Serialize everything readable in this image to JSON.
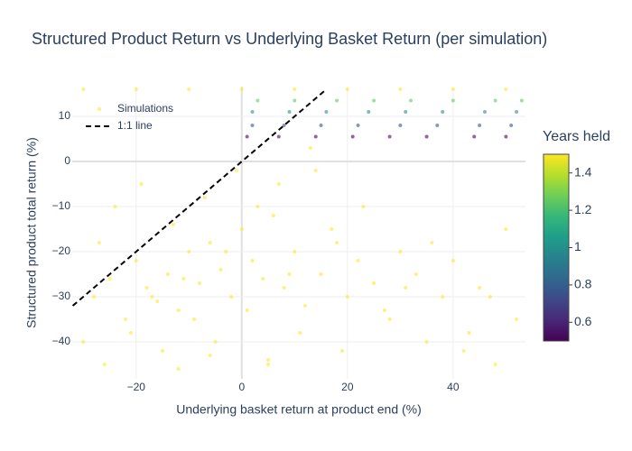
{
  "chart_data": {
    "type": "scatter",
    "title": "Structured Product Return vs Underlying Basket Return (per simulation)",
    "x_label": "Underlying basket return at product end (%)",
    "y_label": "Structured product total return (%)",
    "xlim": [
      -32.1,
      53.7
    ],
    "ylim": [
      -48.2,
      16.6
    ],
    "xticks": [
      {
        "value": -20,
        "label": "−20"
      },
      0,
      20,
      40
    ],
    "yticks": [
      {
        "value": -40,
        "label": "−40"
      },
      {
        "value": -30,
        "label": "−30"
      },
      {
        "value": -20,
        "label": "−20"
      },
      {
        "value": -10,
        "label": "−10"
      },
      0,
      10
    ],
    "grid": true,
    "legend": "top-left",
    "colorbar": {
      "title": "Years held",
      "colorscale": "Viridis",
      "range": [
        0.5,
        1.5
      ],
      "ticks": [
        0.6,
        0.8,
        1,
        1.2,
        1.4
      ]
    },
    "series": [
      {
        "name": "Simulations",
        "type": "scatter",
        "x": [
          -28,
          -25,
          -22,
          -20,
          -18,
          -16,
          -14,
          -12,
          -10,
          -8,
          -6,
          -4,
          -2,
          0,
          2,
          4,
          6,
          8,
          10,
          12,
          15,
          18,
          20,
          22,
          25,
          28,
          30,
          33,
          35,
          38,
          40,
          43,
          45,
          48,
          50,
          52,
          -30,
          -27,
          -24,
          -21,
          -19,
          -17,
          -15,
          -13,
          -11,
          -9,
          -7,
          -5,
          -3,
          -1,
          1,
          3,
          5,
          7,
          9,
          11,
          14,
          17,
          19,
          23,
          27,
          31,
          36,
          42,
          47,
          -26,
          -12,
          -6,
          5,
          13,
          -30,
          -20,
          -10,
          0,
          10,
          20,
          30,
          40,
          50,
          3,
          10,
          18,
          25,
          32,
          40,
          48,
          53,
          2,
          9,
          16,
          24,
          31,
          38,
          46,
          52,
          2,
          8,
          15,
          22,
          30,
          37,
          45,
          51,
          1,
          7,
          14,
          21,
          28,
          35,
          44,
          50
        ],
        "y": [
          -30,
          -26,
          -35,
          -22,
          -28,
          -31,
          -25,
          -33,
          -20,
          -27,
          -18,
          -24,
          -30,
          -15,
          -22,
          -26,
          -12,
          -28,
          -20,
          -32,
          -25,
          -18,
          -30,
          -22,
          -27,
          -35,
          -20,
          -25,
          -40,
          -30,
          -22,
          -38,
          -28,
          -45,
          -15,
          -35,
          -40,
          -18,
          -10,
          -38,
          -5,
          -30,
          -42,
          -14,
          -26,
          -35,
          -8,
          -40,
          -20,
          -2,
          -33,
          -10,
          -44,
          -5,
          -25,
          -38,
          -2,
          -15,
          -42,
          -10,
          -33,
          -28,
          -18,
          -42,
          -30,
          -45,
          -46,
          -43,
          -45,
          3,
          16,
          16,
          16,
          16,
          16,
          16,
          16,
          16,
          16,
          13.5,
          13.5,
          13.5,
          13.5,
          13.5,
          13.5,
          13.5,
          13.5,
          11,
          11,
          11,
          11,
          11,
          11,
          11,
          11,
          8,
          8,
          8,
          8,
          8,
          8,
          8,
          8,
          5.5,
          5.5,
          5.5,
          5.5,
          5.5,
          5.5,
          5.5,
          5.5
        ],
        "color_values": [
          1.5,
          1.5,
          1.5,
          1.5,
          1.5,
          1.5,
          1.5,
          1.5,
          1.5,
          1.5,
          1.5,
          1.5,
          1.5,
          1.5,
          1.5,
          1.5,
          1.5,
          1.5,
          1.5,
          1.5,
          1.5,
          1.5,
          1.5,
          1.5,
          1.5,
          1.5,
          1.5,
          1.5,
          1.5,
          1.5,
          1.5,
          1.5,
          1.5,
          1.5,
          1.5,
          1.5,
          1.5,
          1.5,
          1.5,
          1.5,
          1.5,
          1.5,
          1.5,
          1.5,
          1.5,
          1.5,
          1.5,
          1.5,
          1.5,
          1.5,
          1.5,
          1.5,
          1.5,
          1.5,
          1.5,
          1.5,
          1.5,
          1.5,
          1.5,
          1.5,
          1.5,
          1.5,
          1.5,
          1.5,
          1.5,
          1.5,
          1.5,
          1.5,
          1.5,
          1.5,
          1.5,
          1.5,
          1.5,
          1.5,
          1.5,
          1.5,
          1.5,
          1.5,
          1.5,
          1.25,
          1.25,
          1.25,
          1.25,
          1.25,
          1.25,
          1.25,
          1.25,
          1,
          1,
          1,
          1,
          1,
          1,
          1,
          1,
          0.75,
          0.75,
          0.75,
          0.75,
          0.75,
          0.75,
          0.75,
          0.75,
          0.5,
          0.5,
          0.5,
          0.5,
          0.5,
          0.5,
          0.5,
          0.5
        ]
      },
      {
        "name": "1:1 line",
        "type": "line",
        "color": "#000000",
        "dash": true,
        "x": [
          -32,
          16
        ],
        "y": [
          -32,
          16
        ]
      }
    ]
  }
}
